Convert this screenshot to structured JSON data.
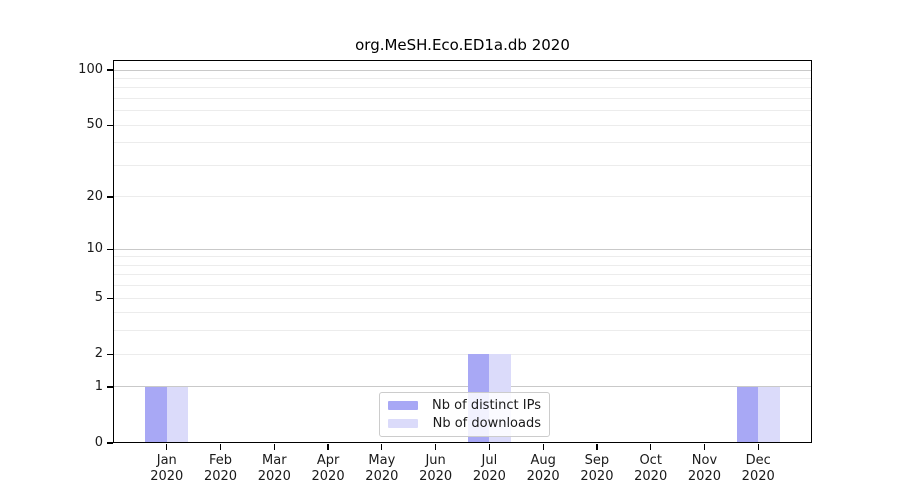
{
  "chart_data": {
    "type": "bar",
    "title": "org.MeSH.Eco.ED1a.db 2020",
    "categories": [
      "Jan",
      "Feb",
      "Mar",
      "Apr",
      "May",
      "Jun",
      "Jul",
      "Aug",
      "Sep",
      "Oct",
      "Nov",
      "Dec"
    ],
    "category_year": "2020",
    "series": [
      {
        "name": "Nb of distinct IPs",
        "color": "#a8a8f5",
        "values": [
          1,
          0,
          0,
          0,
          0,
          0,
          2,
          0,
          0,
          0,
          0,
          1
        ]
      },
      {
        "name": "Nb of downloads",
        "color": "#dbdbfa",
        "values": [
          1,
          0,
          0,
          0,
          0,
          0,
          2,
          0,
          0,
          0,
          0,
          1
        ]
      }
    ],
    "xlabel": "",
    "ylabel": "",
    "yscale": "log1p",
    "ylim": [
      0,
      114
    ],
    "y_tick_labels": [
      0,
      1,
      2,
      5,
      10,
      20,
      50,
      100
    ],
    "grid_major_values": [
      1,
      10,
      100
    ],
    "grid_minor_values": [
      2,
      3,
      4,
      5,
      6,
      7,
      8,
      9,
      20,
      30,
      40,
      50,
      60,
      70,
      80,
      90
    ],
    "grid": true,
    "legend_position": "lower center",
    "colors": {
      "grid_major": "#c9c9c9",
      "grid_minor": "#ececec",
      "axis": "#000000",
      "tick_text": "#1a1a1a"
    }
  }
}
